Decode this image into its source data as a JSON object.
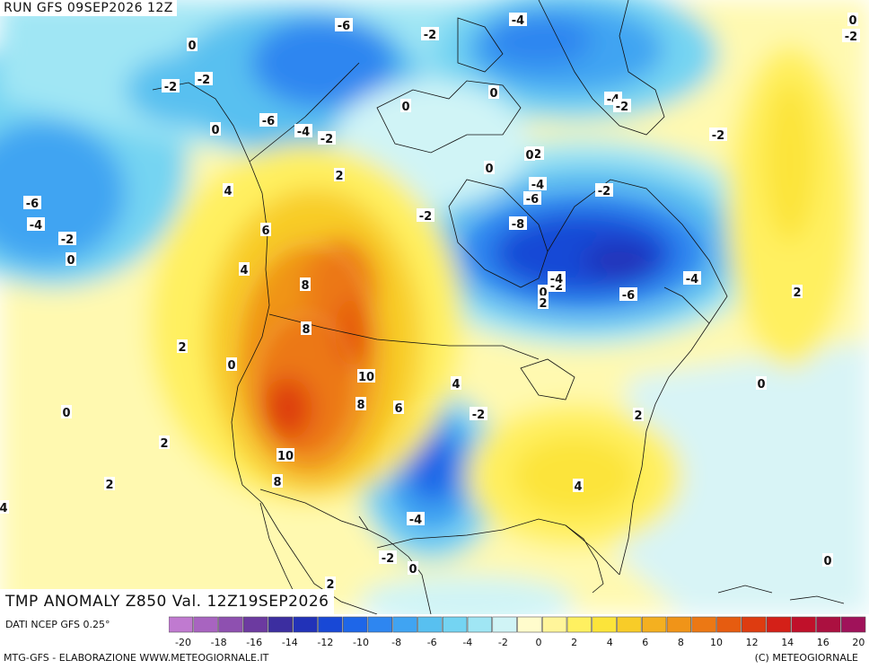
{
  "header": {
    "run_title": "RUN GFS 09SEP2026 12Z",
    "valid_title": "TMP ANOMALY Z850 Val. 12Z19SEP2026"
  },
  "footer": {
    "source": "DATI NCEP GFS 0.25°",
    "credit_left": "MTG-GFS - ELABORAZIONE WWW.METEOGIORNALE.IT",
    "credit_right": "(C) METEOGIORNALE"
  },
  "legend": {
    "tick_labels": [
      "-20",
      "-18",
      "-16",
      "-14",
      "-12",
      "-10",
      "-8",
      "-6",
      "-4",
      "-2",
      "0",
      "2",
      "4",
      "6",
      "8",
      "10",
      "12",
      "14",
      "16",
      "20"
    ],
    "colors": [
      "#c07ad0",
      "#a864c0",
      "#8e50b0",
      "#6c3aa0",
      "#3c2ea0",
      "#2232b8",
      "#1848d6",
      "#1e66e8",
      "#2e86f0",
      "#40a4f2",
      "#58c0f0",
      "#74d4f2",
      "#a0e6f4",
      "#d0f4f6",
      "#fffccc",
      "#fff59a",
      "#fff060",
      "#fce43a",
      "#f8cc28",
      "#f4b020",
      "#f09418",
      "#ec7814",
      "#e65c10",
      "#de3c10",
      "#d42018",
      "#c0102a",
      "#ab1040",
      "#a0125a"
    ]
  },
  "map_labels": [
    "0",
    "-6",
    "-2",
    "-4",
    "-6",
    "0",
    "-2",
    "0",
    "-2",
    "-2",
    "0",
    "0",
    "-4",
    "-2",
    "-6",
    "-4",
    "-2",
    "0",
    "-2",
    "2",
    "4",
    "0",
    "-2",
    "-4",
    "-6",
    "-2",
    "-6",
    "-4",
    "-2",
    "0",
    "-8",
    "-2",
    "-4",
    "-2",
    "0",
    "2",
    "-6",
    "-4",
    "2",
    "6",
    "4",
    "8",
    "8",
    "2",
    "0",
    "10",
    "8",
    "6",
    "4",
    "-2",
    "0",
    "0",
    "2",
    "2",
    "10",
    "8",
    "2",
    "4",
    "-4",
    "4",
    "-2",
    "0",
    "0",
    "2"
  ]
}
